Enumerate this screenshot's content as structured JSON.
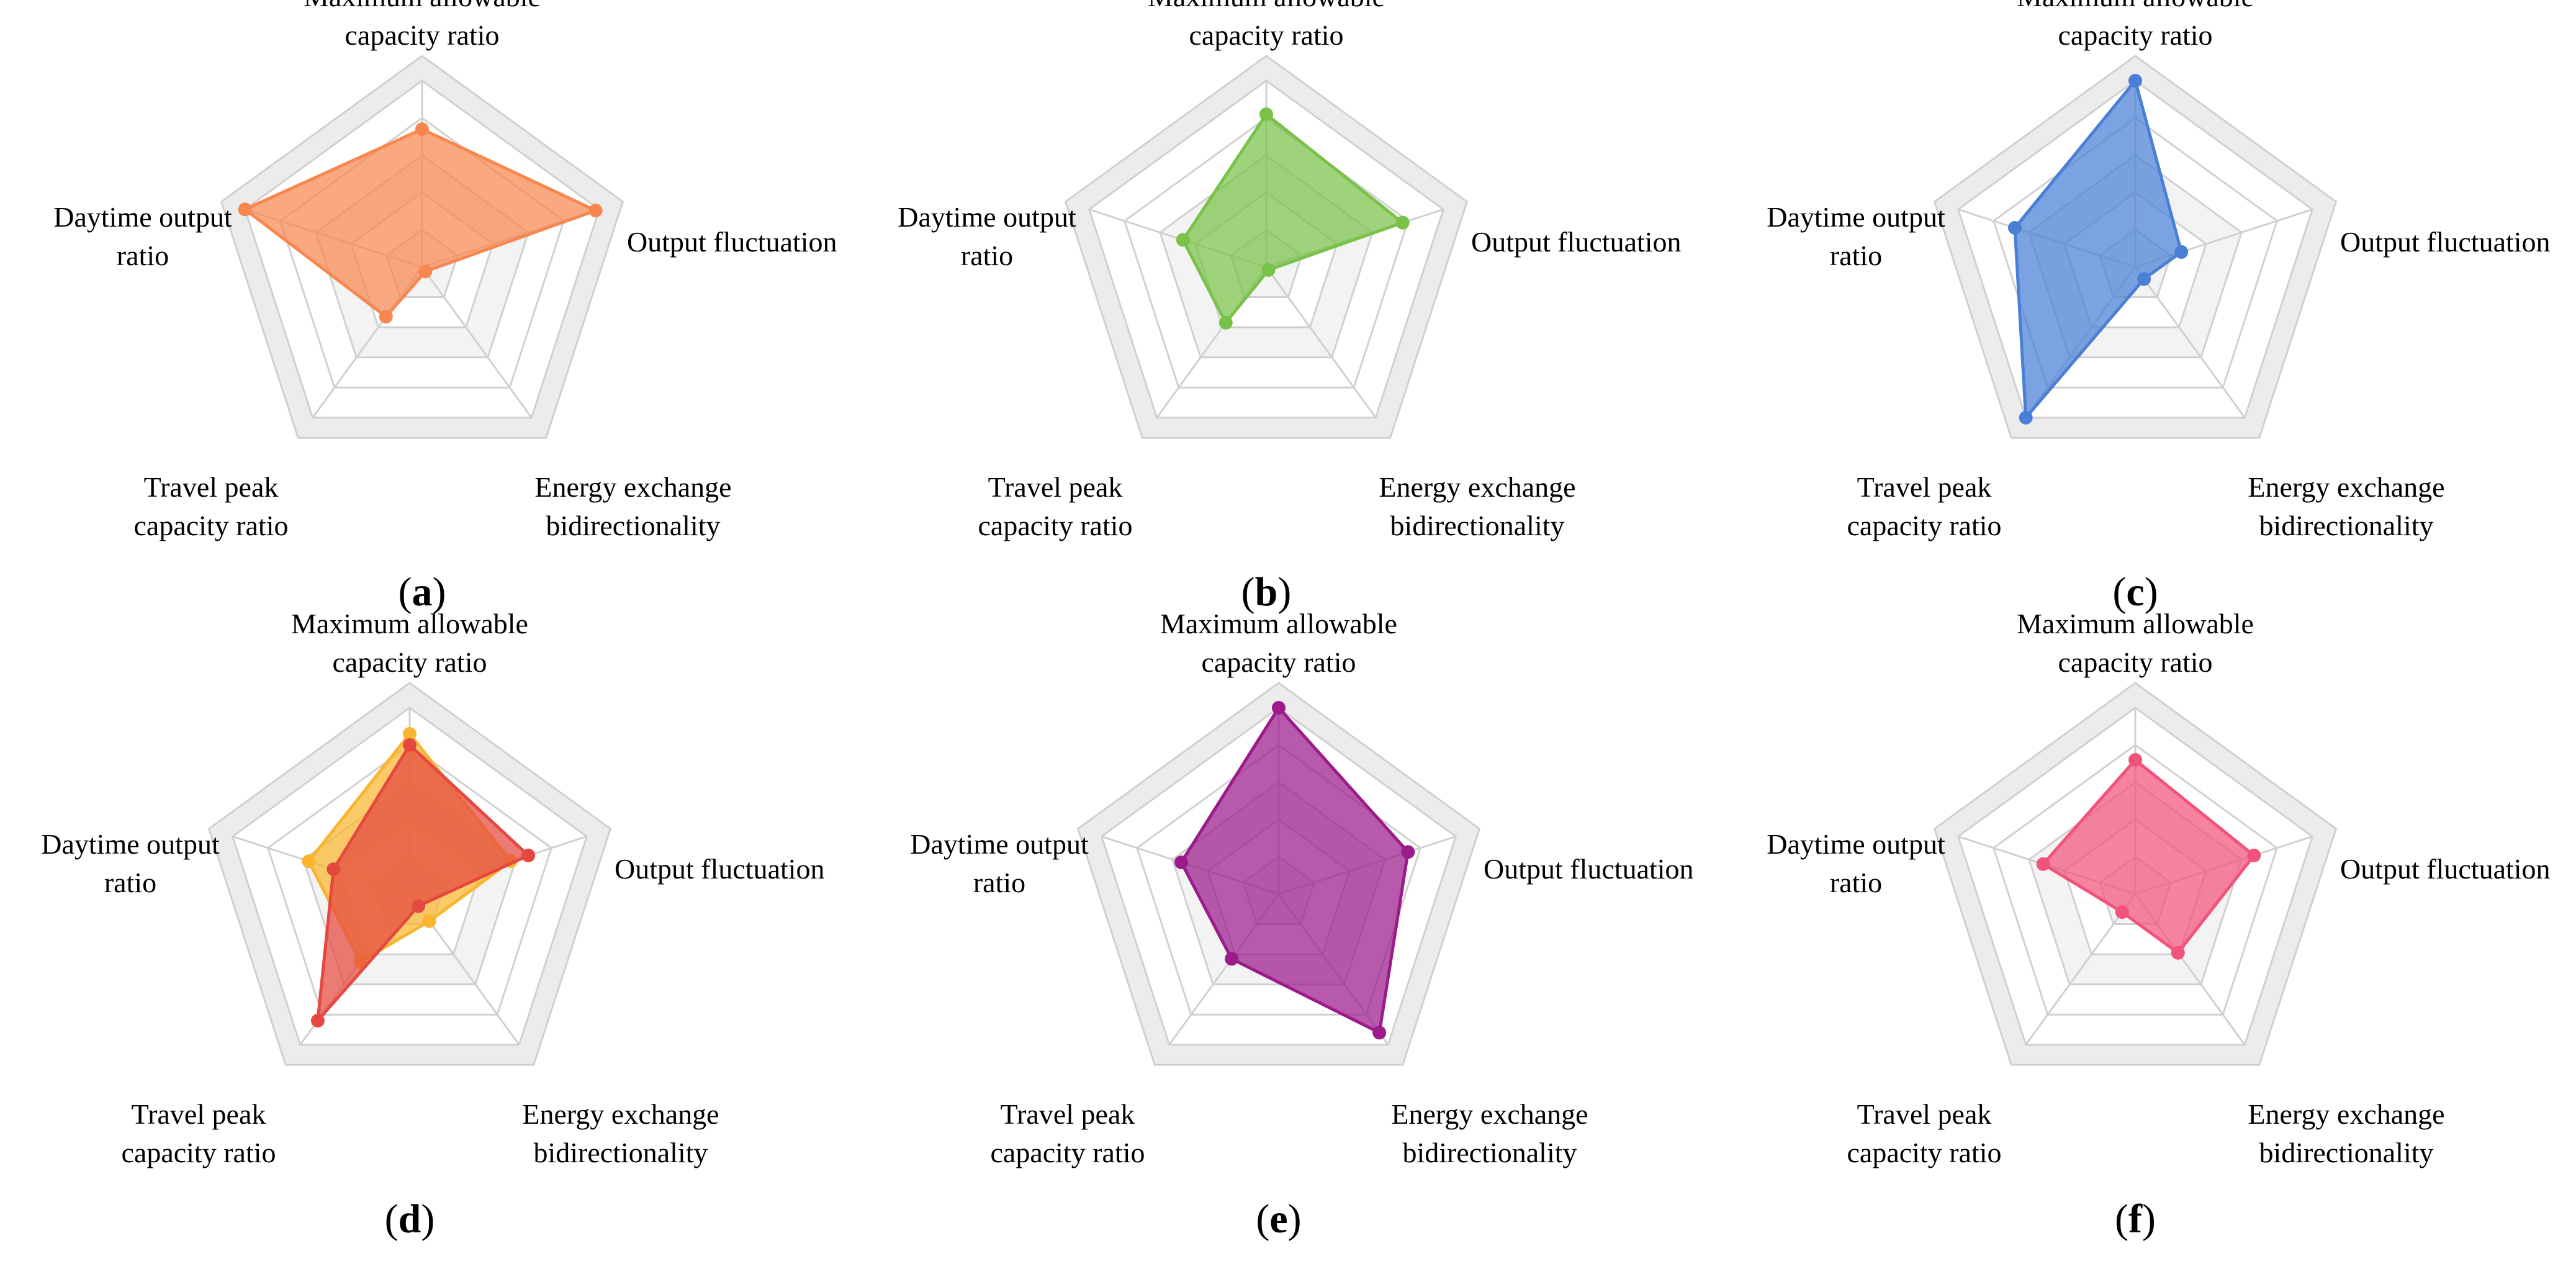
{
  "axes": [
    "Maximum allowable capacity ratio",
    "Output fluctuation",
    "Energy exchange bidirectionality",
    "Travel peak capacity ratio",
    "Daytime output ratio"
  ],
  "chart_data": [
    {
      "type": "radar",
      "panel_label": "a",
      "axes": [
        "Maximum allowable capacity ratio",
        "Output fluctuation",
        "Energy exchange bidirectionality",
        "Travel peak capacity ratio",
        "Daytime output ratio"
      ],
      "rings": 5,
      "range": [
        0,
        1
      ],
      "grid": true,
      "series": [
        {
          "color": "#f7874f",
          "values": [
            0.74,
            0.98,
            0.03,
            0.33,
            1.0
          ]
        }
      ]
    },
    {
      "type": "radar",
      "panel_label": "b",
      "axes": [
        "Maximum allowable capacity ratio",
        "Output fluctuation",
        "Energy exchange bidirectionality",
        "Travel peak capacity ratio",
        "Daytime output ratio"
      ],
      "rings": 5,
      "range": [
        0,
        1
      ],
      "grid": true,
      "series": [
        {
          "color": "#79c24a",
          "values": [
            0.82,
            0.77,
            0.02,
            0.37,
            0.47
          ]
        }
      ]
    },
    {
      "type": "radar",
      "panel_label": "c",
      "axes": [
        "Maximum allowable capacity ratio",
        "Output fluctuation",
        "Energy exchange bidirectionality",
        "Travel peak capacity ratio",
        "Daytime output ratio"
      ],
      "rings": 5,
      "range": [
        0,
        1
      ],
      "grid": true,
      "series": [
        {
          "color": "#4a7fd6",
          "values": [
            1.0,
            0.26,
            0.08,
            1.0,
            0.68
          ]
        }
      ]
    },
    {
      "type": "radar",
      "panel_label": "d",
      "axes": [
        "Maximum allowable capacity ratio",
        "Output fluctuation",
        "Energy exchange bidirectionality",
        "Travel peak capacity ratio",
        "Daytime output ratio"
      ],
      "rings": 5,
      "range": [
        0,
        1
      ],
      "grid": true,
      "series": [
        {
          "color": "#f9b52f",
          "values": [
            0.86,
            0.57,
            0.18,
            0.45,
            0.57
          ]
        },
        {
          "color": "#e5483e",
          "values": [
            0.8,
            0.67,
            0.08,
            0.84,
            0.43
          ]
        }
      ]
    },
    {
      "type": "radar",
      "panel_label": "e",
      "axes": [
        "Maximum allowable capacity ratio",
        "Output fluctuation",
        "Energy exchange bidirectionality",
        "Travel peak capacity ratio",
        "Daytime output ratio"
      ],
      "rings": 5,
      "range": [
        0,
        1
      ],
      "grid": true,
      "series": [
        {
          "color": "#9c1b8b",
          "values": [
            1.0,
            0.73,
            0.92,
            0.43,
            0.55
          ]
        }
      ]
    },
    {
      "type": "radar",
      "panel_label": "f",
      "axes": [
        "Maximum allowable capacity ratio",
        "Output fluctuation",
        "Energy exchange bidirectionality",
        "Travel peak capacity ratio",
        "Daytime output ratio"
      ],
      "rings": 5,
      "range": [
        0,
        1
      ],
      "grid": true,
      "series": [
        {
          "color": "#f2537b",
          "values": [
            0.72,
            0.67,
            0.39,
            0.12,
            0.52
          ]
        }
      ]
    }
  ]
}
